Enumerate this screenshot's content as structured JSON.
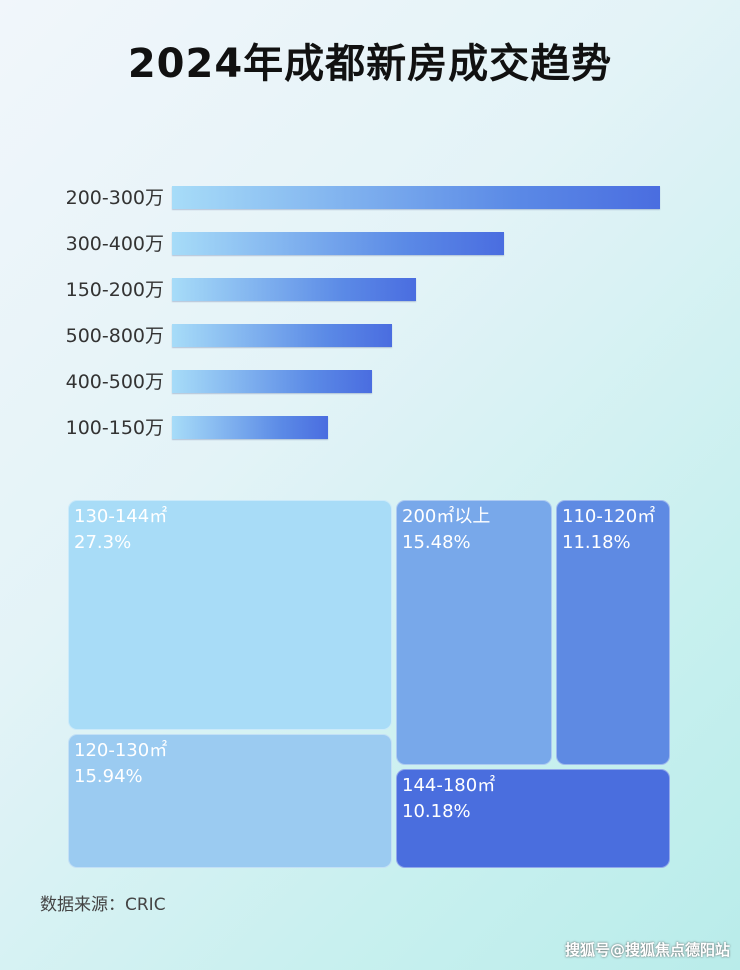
{
  "chart_data": [
    {
      "type": "bar",
      "orientation": "horizontal",
      "title": "2024年成都新房成交趋势",
      "categories": [
        "200-300万",
        "300-400万",
        "150-200万",
        "500-800万",
        "400-500万",
        "100-150万"
      ],
      "values": [
        100,
        68,
        50,
        45,
        41,
        32
      ],
      "value_note": "relative",
      "grid": false
    },
    {
      "type": "treemap",
      "items": [
        {
          "label": "130-144㎡",
          "value": "27.3%",
          "color": "#a8dcf7"
        },
        {
          "label": "120-130㎡",
          "value": "15.94%",
          "color": "#9bcbf1"
        },
        {
          "label": "200㎡以上",
          "value": "15.48%",
          "color": "#78a8ea"
        },
        {
          "label": "110-120㎡",
          "value": "11.18%",
          "color": "#5e8ae3"
        },
        {
          "label": "144-180㎡",
          "value": "10.18%",
          "color": "#4a6ede"
        }
      ]
    }
  ],
  "source": "数据来源：CRIC",
  "watermark": "搜狐号@搜狐焦点德阳站"
}
